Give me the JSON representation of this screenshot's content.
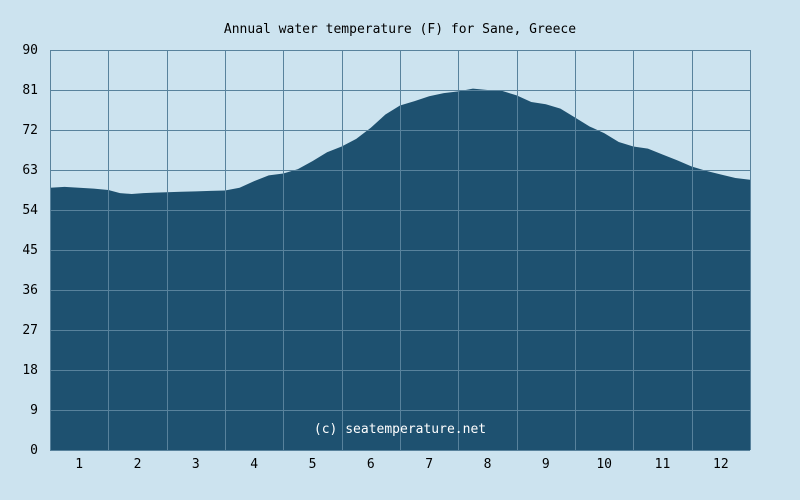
{
  "chart_data": {
    "type": "area",
    "title": "Annual water temperature (F) for Sane, Greece",
    "watermark": "(c) seatemperature.net",
    "xlabel": "",
    "ylabel": "",
    "x_ticks": [
      "1",
      "2",
      "3",
      "4",
      "5",
      "6",
      "7",
      "8",
      "9",
      "10",
      "11",
      "12"
    ],
    "y_ticks": [
      "0",
      "9",
      "18",
      "27",
      "36",
      "45",
      "54",
      "63",
      "72",
      "81",
      "90"
    ],
    "ylim": [
      0,
      90
    ],
    "xlim": [
      0.5,
      12.5
    ],
    "grid": true,
    "series": [
      {
        "points": [
          [
            0.5,
            59.0
          ],
          [
            0.75,
            59.2
          ],
          [
            1.0,
            59.0
          ],
          [
            1.25,
            58.8
          ],
          [
            1.5,
            58.5
          ],
          [
            1.7,
            57.8
          ],
          [
            1.9,
            57.6
          ],
          [
            2.1,
            57.8
          ],
          [
            2.3,
            57.9
          ],
          [
            2.5,
            58.0
          ],
          [
            2.75,
            58.1
          ],
          [
            3.0,
            58.2
          ],
          [
            3.25,
            58.3
          ],
          [
            3.5,
            58.4
          ],
          [
            3.75,
            59.0
          ],
          [
            4.0,
            60.5
          ],
          [
            4.25,
            61.8
          ],
          [
            4.5,
            62.2
          ],
          [
            4.75,
            63.2
          ],
          [
            5.0,
            65.0
          ],
          [
            5.25,
            67.0
          ],
          [
            5.5,
            68.3
          ],
          [
            5.75,
            70.0
          ],
          [
            6.0,
            72.5
          ],
          [
            6.25,
            75.5
          ],
          [
            6.5,
            77.5
          ],
          [
            6.75,
            78.5
          ],
          [
            7.0,
            79.6
          ],
          [
            7.25,
            80.3
          ],
          [
            7.5,
            80.7
          ],
          [
            7.75,
            81.3
          ],
          [
            8.0,
            81.0
          ],
          [
            8.25,
            80.8
          ],
          [
            8.5,
            79.8
          ],
          [
            8.75,
            78.3
          ],
          [
            9.0,
            77.8
          ],
          [
            9.25,
            76.8
          ],
          [
            9.5,
            74.8
          ],
          [
            9.75,
            72.8
          ],
          [
            10.0,
            71.3
          ],
          [
            10.25,
            69.3
          ],
          [
            10.5,
            68.3
          ],
          [
            10.75,
            67.8
          ],
          [
            11.0,
            66.5
          ],
          [
            11.25,
            65.2
          ],
          [
            11.5,
            63.8
          ],
          [
            11.75,
            62.8
          ],
          [
            12.0,
            62.0
          ],
          [
            12.25,
            61.2
          ],
          [
            12.5,
            60.8
          ]
        ]
      }
    ]
  },
  "colors": {
    "background": "#cce3ef",
    "area_fill": "#1e5170",
    "grid_line": "#58829c",
    "text": "#000000",
    "watermark": "#ffffff"
  }
}
